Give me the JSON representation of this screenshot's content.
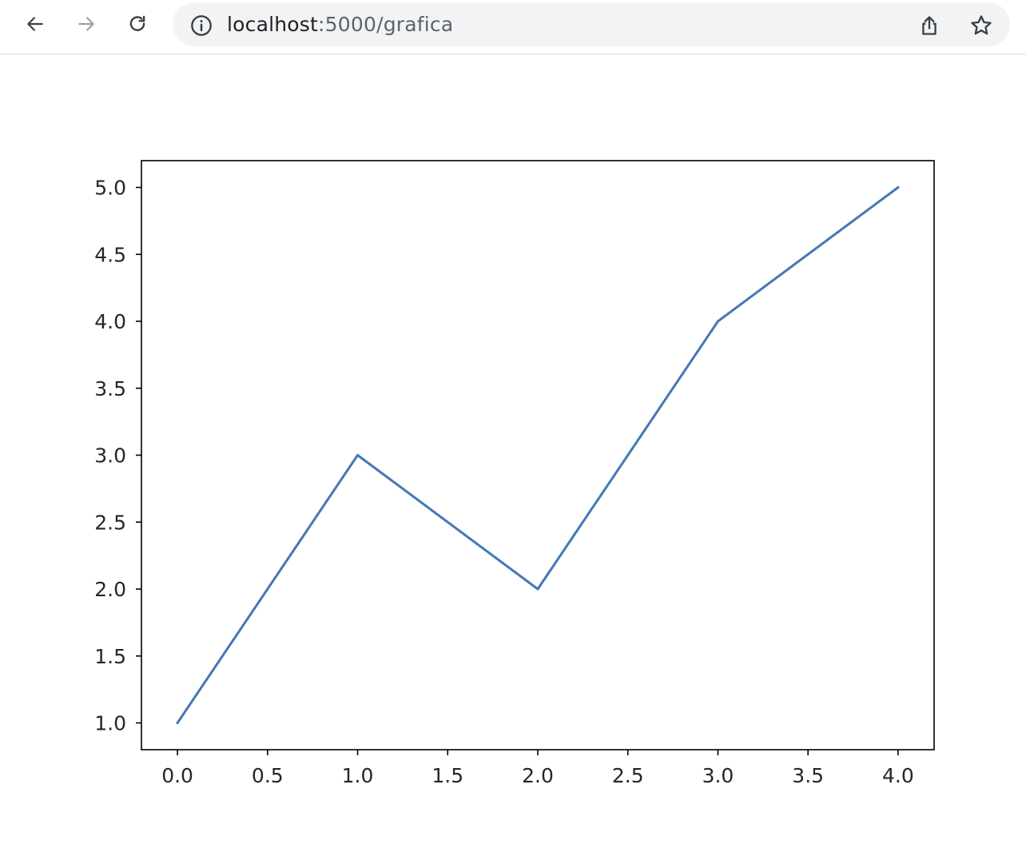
{
  "browser": {
    "url_host": "localhost",
    "url_path": ":5000/grafica",
    "icons": {
      "back": "arrow-left-icon",
      "forward": "arrow-right-icon",
      "reload": "reload-icon",
      "info": "info-icon",
      "share": "share-icon",
      "bookmark": "star-icon"
    }
  },
  "chart_data": {
    "type": "line",
    "title": "",
    "xlabel": "",
    "ylabel": "",
    "x": [
      0,
      1,
      2,
      3,
      4
    ],
    "series": [
      {
        "values": [
          1,
          3,
          2,
          4,
          5
        ]
      }
    ],
    "xlim": [
      -0.2,
      4.2
    ],
    "ylim": [
      0.8,
      5.2
    ],
    "xticks": [
      "0.0",
      "0.5",
      "1.0",
      "1.5",
      "2.0",
      "2.5",
      "3.0",
      "3.5",
      "4.0"
    ],
    "yticks": [
      "1.0",
      "1.5",
      "2.0",
      "2.5",
      "3.0",
      "3.5",
      "4.0",
      "4.5",
      "5.0"
    ],
    "grid": false,
    "line_color": "#4378b4"
  }
}
